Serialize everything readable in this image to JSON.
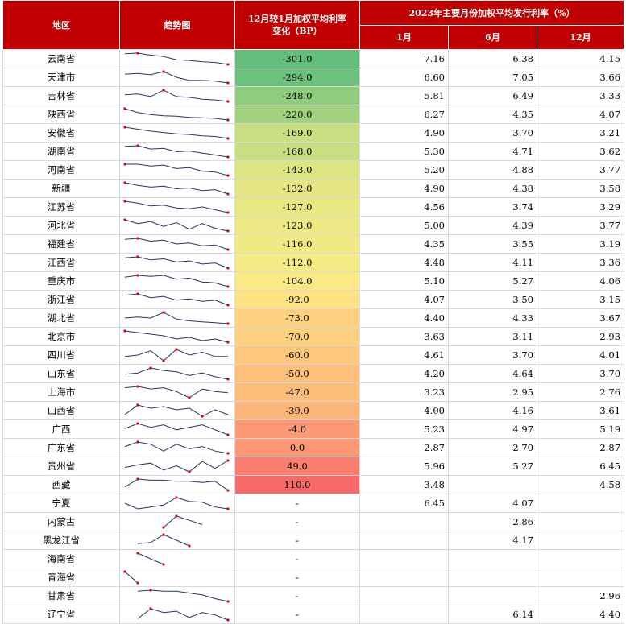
{
  "header": {
    "region": "地区",
    "trend": "趋势图",
    "change_line1": "12月较1月加权平均利率",
    "change_line2": "变化（BP）",
    "rate_group": "2023年主要月份加权平均发行利率（%）",
    "jan": "1月",
    "jun": "6月",
    "dec": "12月"
  },
  "rows": [
    {
      "region": "云南省",
      "change": "-301.0",
      "jan": "7.16",
      "jun": "6.38",
      "dec": "4.15",
      "change_color": "#63be7b",
      "spark": [
        5.9,
        6.0,
        5.7,
        5.5,
        5.0,
        4.9,
        4.7,
        4.6,
        4.3
      ]
    },
    {
      "region": "天津市",
      "change": "-294.0",
      "jan": "6.60",
      "jun": "7.05",
      "dec": "3.66",
      "change_color": "#6cc17c",
      "spark": [
        5.2,
        5.3,
        5.1,
        5.6,
        4.7,
        4.2,
        4.2,
        4.1,
        3.8
      ]
    },
    {
      "region": "吉林省",
      "change": "-248.0",
      "jan": "5.81",
      "jun": "6.49",
      "dec": "3.33",
      "change_color": "#8fcc7e",
      "spark": [
        5.3,
        5.5,
        4.8,
        6.5,
        4.8,
        4.6,
        4.1,
        3.9,
        3.5
      ]
    },
    {
      "region": "陕西省",
      "change": "-220.0",
      "jan": "6.27",
      "jun": "4.35",
      "dec": "4.07",
      "change_color": "#a2d27f",
      "spark": [
        6.2,
        5.5,
        5.1,
        4.9,
        4.8,
        4.6,
        4.5,
        4.4,
        4.1
      ]
    },
    {
      "region": "安徽省",
      "change": "-169.0",
      "jan": "4.90",
      "jun": "3.70",
      "dec": "3.21",
      "change_color": "#c9dd81",
      "spark": [
        4.9,
        4.6,
        4.3,
        4.1,
        3.9,
        3.8,
        3.6,
        3.5,
        3.2
      ]
    },
    {
      "region": "湖南省",
      "change": "-168.0",
      "jan": "5.30",
      "jun": "4.71",
      "dec": "3.62",
      "change_color": "#cadd81",
      "spark": [
        5.2,
        5.3,
        4.8,
        4.9,
        4.4,
        4.5,
        4.2,
        3.9,
        3.6
      ]
    },
    {
      "region": "河南省",
      "change": "-143.0",
      "jan": "5.20",
      "jun": "4.88",
      "dec": "3.77",
      "change_color": "#dde482",
      "spark": [
        5.1,
        5.1,
        4.9,
        5.0,
        4.6,
        4.7,
        4.3,
        4.2,
        3.8
      ]
    },
    {
      "region": "新疆",
      "change": "-132.0",
      "jan": "4.90",
      "jun": "4.38",
      "dec": "3.58",
      "change_color": "#e5e683",
      "spark": [
        4.9,
        4.6,
        4.4,
        4.5,
        4.2,
        4.3,
        4.0,
        4.1,
        3.6
      ]
    },
    {
      "region": "江苏省",
      "change": "-127.0",
      "jan": "4.56",
      "jun": "3.74",
      "dec": "3.29",
      "change_color": "#eae883",
      "spark": [
        4.5,
        4.3,
        4.0,
        4.1,
        3.8,
        3.7,
        3.9,
        3.6,
        3.3
      ]
    },
    {
      "region": "河北省",
      "change": "-123.0",
      "jan": "5.00",
      "jun": "4.39",
      "dec": "3.77",
      "change_color": "#ede984",
      "spark": [
        5.0,
        4.6,
        4.8,
        4.3,
        4.7,
        4.0,
        4.6,
        4.1,
        3.8
      ]
    },
    {
      "region": "福建省",
      "change": "-116.0",
      "jan": "4.35",
      "jun": "3.55",
      "dec": "3.19",
      "change_color": "#f1ea84",
      "spark": [
        4.3,
        4.4,
        4.1,
        4.2,
        3.8,
        3.9,
        3.6,
        3.7,
        3.2
      ]
    },
    {
      "region": "江西省",
      "change": "-112.0",
      "jan": "4.48",
      "jun": "4.11",
      "dec": "3.36",
      "change_color": "#f4eb84",
      "spark": [
        4.4,
        4.5,
        4.2,
        4.3,
        4.0,
        4.1,
        3.8,
        3.9,
        3.4
      ]
    },
    {
      "region": "重庆市",
      "change": "-104.0",
      "jan": "5.10",
      "jun": "5.27",
      "dec": "4.06",
      "change_color": "#fae984",
      "spark": [
        5.1,
        5.3,
        5.2,
        5.3,
        4.9,
        5.0,
        4.6,
        4.5,
        4.1
      ]
    },
    {
      "region": "浙江省",
      "change": "-92.0",
      "jan": "4.07",
      "jun": "3.50",
      "dec": "3.15",
      "change_color": "#fde283",
      "spark": [
        4.0,
        4.1,
        3.8,
        3.9,
        3.6,
        3.7,
        3.5,
        3.6,
        3.2
      ]
    },
    {
      "region": "湖北省",
      "change": "-73.0",
      "jan": "4.40",
      "jun": "4.33",
      "dec": "3.67",
      "change_color": "#fdd17f",
      "spark": [
        4.3,
        4.4,
        4.3,
        4.9,
        4.2,
        4.0,
        3.9,
        3.8,
        3.7
      ]
    },
    {
      "region": "北京市",
      "change": "-70.0",
      "jan": "3.63",
      "jun": "3.11",
      "dec": "2.93",
      "change_color": "#fdd07e",
      "spark": [
        3.6,
        3.5,
        3.4,
        3.3,
        3.1,
        3.2,
        3.0,
        3.1,
        2.9
      ]
    },
    {
      "region": "四川省",
      "change": "-60.0",
      "jan": "4.61",
      "jun": "3.70",
      "dec": "4.01",
      "change_color": "#fdc87d",
      "spark": [
        4.0,
        4.1,
        4.4,
        3.7,
        4.5,
        4.1,
        4.3,
        4.0,
        4.0
      ]
    },
    {
      "region": "山东省",
      "change": "-50.0",
      "jan": "4.20",
      "jun": "4.64",
      "dec": "3.70",
      "change_color": "#fdbf7b",
      "spark": [
        4.1,
        4.2,
        4.6,
        4.4,
        4.3,
        4.0,
        4.2,
        3.9,
        3.7
      ]
    },
    {
      "region": "上海市",
      "change": "-47.0",
      "jan": "3.23",
      "jun": "2.95",
      "dec": "2.76",
      "change_color": "#fdbd7b",
      "spark": [
        3.2,
        3.3,
        3.1,
        3.2,
        2.9,
        2.4,
        3.1,
        2.9,
        2.8
      ]
    },
    {
      "region": "山西省",
      "change": "-39.0",
      "jan": "4.00",
      "jun": "4.16",
      "dec": "3.61",
      "change_color": "#fcb67a",
      "spark": [
        3.6,
        4.2,
        4.0,
        4.1,
        3.9,
        4.0,
        3.5,
        3.9,
        3.6
      ]
    },
    {
      "region": "广西",
      "change": "-4.0",
      "jan": "5.23",
      "jun": "4.97",
      "dec": "5.19",
      "change_color": "#fb9a75",
      "spark": [
        4.9,
        5.3,
        5.0,
        5.2,
        4.8,
        5.0,
        5.2,
        4.8,
        4.4
      ]
    },
    {
      "region": "广东省",
      "change": "0.0",
      "jan": "2.87",
      "jun": "2.70",
      "dec": "2.87",
      "change_color": "#fb9774",
      "spark": [
        2.8,
        3.0,
        2.9,
        2.6,
        2.9,
        2.7,
        2.8,
        2.6,
        2.5
      ]
    },
    {
      "region": "贵州省",
      "change": "49.0",
      "jan": "5.96",
      "jun": "5.27",
      "dec": "6.45",
      "change_color": "#f97e6f",
      "spark": [
        5.6,
        5.9,
        6.1,
        5.3,
        5.8,
        5.1,
        6.3,
        5.5,
        6.4
      ]
    },
    {
      "region": "西藏",
      "change": "110.0",
      "jan": "3.48",
      "jun": "",
      "dec": "4.58",
      "change_color": "#f8696b",
      "spark": [
        3.8,
        4.5,
        4.4,
        4.4,
        4.3,
        4.3,
        4.2,
        4.3,
        3.5
      ]
    },
    {
      "region": "宁夏",
      "change": "-",
      "jan": "6.45",
      "jun": "4.07",
      "dec": "",
      "change_color": "",
      "spark": [
        5.8,
        5.2,
        5.4,
        5.6,
        6.4,
        6.0,
        5.9,
        5.4,
        5.2
      ]
    },
    {
      "region": "内蒙古",
      "change": "-",
      "jan": "",
      "jun": "2.86",
      "dec": "",
      "change_color": "",
      "spark": [
        null,
        null,
        null,
        2.5,
        3.3,
        3.0,
        2.7,
        null,
        null
      ]
    },
    {
      "region": "黑龙江省",
      "change": "-",
      "jan": "",
      "jun": "4.17",
      "dec": "",
      "change_color": "",
      "spark": [
        null,
        3.8,
        3.9,
        4.6,
        4.1,
        3.6,
        null,
        null,
        null
      ]
    },
    {
      "region": "海南省",
      "change": "-",
      "jan": "",
      "jun": "",
      "dec": "",
      "change_color": "",
      "spark": [
        null,
        4.8,
        4.3,
        3.8,
        null,
        null,
        null,
        null,
        null
      ]
    },
    {
      "region": "青海省",
      "change": "-",
      "jan": "",
      "jun": "",
      "dec": "",
      "change_color": "",
      "spark": [
        4.8,
        3.6,
        null,
        null,
        null,
        null,
        null,
        null,
        null
      ]
    },
    {
      "region": "甘肃省",
      "change": "-",
      "jan": "",
      "jun": "",
      "dec": "2.96",
      "change_color": "",
      "spark": [
        null,
        4.0,
        4.1,
        4.0,
        4.0,
        3.8,
        3.6,
        3.2,
        2.9
      ]
    },
    {
      "region": "辽宁省",
      "change": "-",
      "jan": "",
      "jun": "6.14",
      "dec": "4.40",
      "change_color": "",
      "spark": [
        null,
        4.5,
        5.3,
        5.0,
        5.1,
        4.6,
        5.0,
        4.8,
        4.4
      ]
    }
  ]
}
